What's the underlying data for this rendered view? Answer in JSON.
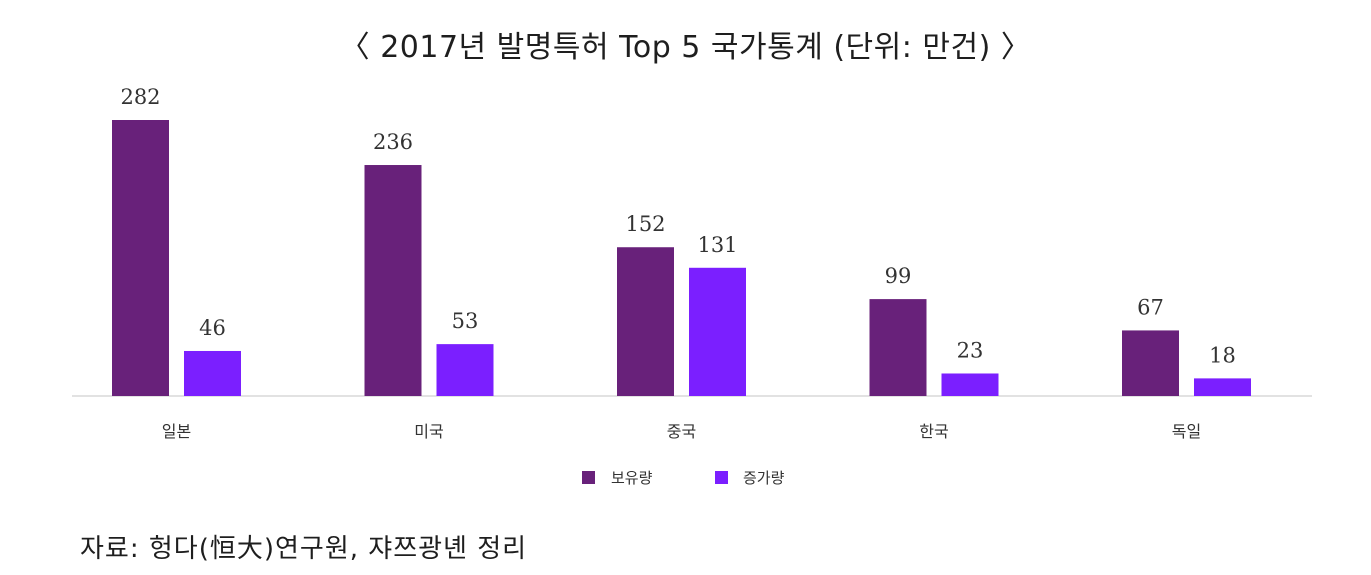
{
  "title": "〈 2017년 발명특허 Top 5 국가통계 (단위: 만건) 〉",
  "source": "자료: 헝다(恒大)연구원, 쟈쯔광녠 정리",
  "chart_data": {
    "type": "bar",
    "categories": [
      "일본",
      "미국",
      "중국",
      "한국",
      "독일"
    ],
    "series": [
      {
        "name": "보유량",
        "values": [
          282,
          236,
          152,
          99,
          67
        ],
        "color": "#68217a"
      },
      {
        "name": "증가량",
        "values": [
          46,
          53,
          131,
          23,
          18
        ],
        "color": "#7b1fff"
      }
    ],
    "ylim": [
      0,
      282
    ],
    "legend": "bottom-center",
    "grid": false
  }
}
